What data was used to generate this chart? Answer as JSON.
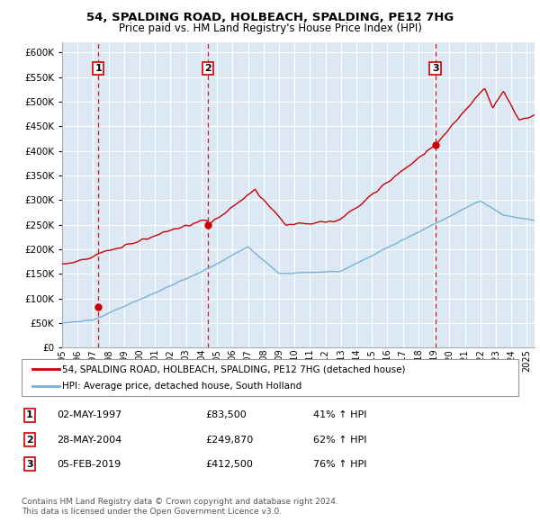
{
  "title1": "54, SPALDING ROAD, HOLBEACH, SPALDING, PE12 7HG",
  "title2": "Price paid vs. HM Land Registry's House Price Index (HPI)",
  "ylim": [
    0,
    620000
  ],
  "yticks": [
    0,
    50000,
    100000,
    150000,
    200000,
    250000,
    300000,
    350000,
    400000,
    450000,
    500000,
    550000,
    600000
  ],
  "bg_color": "#dce9f5",
  "grid_color": "#ffffff",
  "hpi_color": "#7ab0d4",
  "price_color": "#cc0000",
  "sales": [
    {
      "date": 1997.33,
      "price": 83500,
      "label": "1"
    },
    {
      "date": 2004.41,
      "price": 249870,
      "label": "2"
    },
    {
      "date": 2019.09,
      "price": 412500,
      "label": "3"
    }
  ],
  "legend_line1": "54, SPALDING ROAD, HOLBEACH, SPALDING, PE12 7HG (detached house)",
  "legend_line2": "HPI: Average price, detached house, South Holland",
  "table": [
    {
      "num": "1",
      "date": "02-MAY-1997",
      "price": "£83,500",
      "hpi": "41% ↑ HPI"
    },
    {
      "num": "2",
      "date": "28-MAY-2004",
      "price": "£249,870",
      "hpi": "62% ↑ HPI"
    },
    {
      "num": "3",
      "date": "05-FEB-2019",
      "price": "£412,500",
      "hpi": "76% ↑ HPI"
    }
  ],
  "footer1": "Contains HM Land Registry data © Crown copyright and database right 2024.",
  "footer2": "This data is licensed under the Open Government Licence v3.0.",
  "xlim_min": 1995,
  "xlim_max": 2025.5
}
